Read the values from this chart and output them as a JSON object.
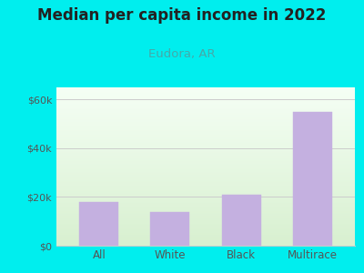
{
  "title": "Median per capita income in 2022",
  "subtitle": "Eudora, AR",
  "categories": [
    "All",
    "White",
    "Black",
    "Multirace"
  ],
  "values": [
    18000,
    14000,
    21000,
    55000
  ],
  "bar_color": "#c4b0e0",
  "bar_edge_color": "#c4b0e0",
  "title_fontsize": 12,
  "subtitle_fontsize": 9.5,
  "subtitle_color": "#44aaaa",
  "title_color": "#222222",
  "outer_bg_color": "#00eeee",
  "ylim": [
    0,
    65000
  ],
  "yticks": [
    0,
    20000,
    40000,
    60000
  ],
  "ytick_labels": [
    "$0",
    "$20k",
    "$40k",
    "$60k"
  ],
  "tick_color": "#555555",
  "axis_label_color": "#555555",
  "grid_color": "#cccccc",
  "plot_bg_top_color": "#f5fff5",
  "plot_bg_bottom_color": "#d8f0d0"
}
